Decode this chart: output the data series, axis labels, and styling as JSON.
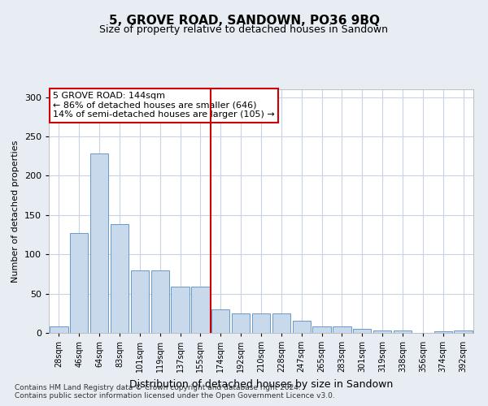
{
  "title": "5, GROVE ROAD, SANDOWN, PO36 9BQ",
  "subtitle": "Size of property relative to detached houses in Sandown",
  "xlabel": "Distribution of detached houses by size in Sandown",
  "ylabel": "Number of detached properties",
  "categories": [
    "28sqm",
    "46sqm",
    "64sqm",
    "83sqm",
    "101sqm",
    "119sqm",
    "137sqm",
    "155sqm",
    "174sqm",
    "192sqm",
    "210sqm",
    "228sqm",
    "247sqm",
    "265sqm",
    "283sqm",
    "301sqm",
    "319sqm",
    "338sqm",
    "356sqm",
    "374sqm",
    "392sqm"
  ],
  "values": [
    8,
    127,
    228,
    138,
    80,
    80,
    59,
    59,
    30,
    25,
    25,
    25,
    15,
    8,
    8,
    5,
    3,
    3,
    0,
    2,
    3
  ],
  "bar_color": "#c9d9ec",
  "bar_edge_color": "#6699cc",
  "vline_x": 7.5,
  "vline_color": "#cc0000",
  "annotation_text": "5 GROVE ROAD: 144sqm\n← 86% of detached houses are smaller (646)\n14% of semi-detached houses are larger (105) →",
  "annotation_box_color": "#ffffff",
  "annotation_box_edge": "#cc0000",
  "ylim": [
    0,
    310
  ],
  "yticks": [
    0,
    50,
    100,
    150,
    200,
    250,
    300
  ],
  "footer1": "Contains HM Land Registry data © Crown copyright and database right 2024.",
  "footer2": "Contains public sector information licensed under the Open Government Licence v3.0.",
  "bg_color": "#e8edf4",
  "plot_bg_color": "#ffffff"
}
